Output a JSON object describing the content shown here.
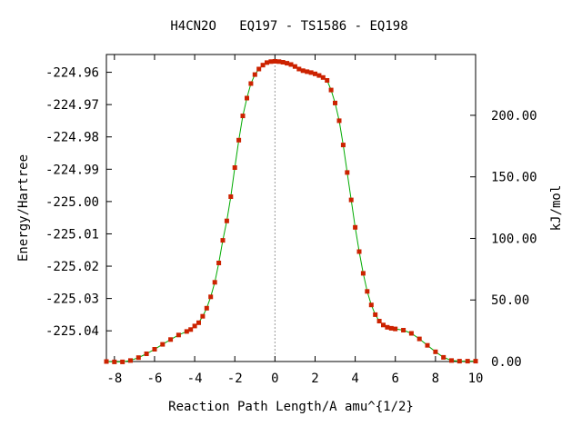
{
  "chart_data": {
    "type": "line",
    "title": "H4CN2O   EQ197 - TS1586 - EQ198",
    "xlabel": "Reaction Path Length/A amu^{1/2}",
    "ylabel": "Energy/Hartree",
    "y2label": "kJ/mol",
    "xlim": [
      -8.4,
      10.0
    ],
    "ylim": [
      -225.0495,
      -224.9545
    ],
    "y2lim": [
      0.0,
      249.4
    ],
    "grid": false,
    "ts_marker_x": 0,
    "x_ticks": [
      -8,
      -6,
      -4,
      -2,
      0,
      2,
      4,
      6,
      8,
      10
    ],
    "x_tick_labels": [
      "-8",
      "-6",
      "-4",
      "-2",
      "0",
      "2",
      "4",
      "6",
      "8",
      "10"
    ],
    "y_ticks": [
      -224.96,
      -224.97,
      -224.98,
      -224.99,
      -225.0,
      -225.01,
      -225.02,
      -225.03,
      -225.04
    ],
    "y_tick_labels": [
      "-224.96",
      "-224.97",
      "-224.98",
      "-224.99",
      "-225.00",
      "-225.01",
      "-225.02",
      "-225.03",
      "-225.04"
    ],
    "y2_ticks": [
      0,
      50,
      100,
      150,
      200
    ],
    "y2_tick_labels": [
      "0.00",
      "50.00",
      "100.00",
      "150.00",
      "200.00"
    ],
    "line_color": "#00aa00",
    "marker_color": "#cc2200",
    "series": [
      {
        "x": [
          -8.4,
          -8.0,
          -7.6,
          -7.2,
          -6.8,
          -6.4,
          -6.0,
          -5.6,
          -5.2,
          -4.8,
          -4.4,
          -4.2,
          -4.0,
          -3.8,
          -3.6,
          -3.4,
          -3.2,
          -3.0,
          -2.8,
          -2.6,
          -2.4,
          -2.2,
          -2.0,
          -1.8,
          -1.6,
          -1.4,
          -1.2,
          -1.0,
          -0.8,
          -0.6,
          -0.4,
          -0.2,
          0.0,
          0.2,
          0.4,
          0.6,
          0.8,
          1.0,
          1.2,
          1.4,
          1.6,
          1.8,
          2.0,
          2.2,
          2.4,
          2.6,
          2.8,
          3.0,
          3.2,
          3.4,
          3.6,
          3.8,
          4.0,
          4.2,
          4.4,
          4.6,
          4.8,
          5.0,
          5.2,
          5.4,
          5.6,
          5.8,
          6.0,
          6.4,
          6.8,
          7.2,
          7.6,
          8.0,
          8.4,
          8.8,
          9.2,
          9.6,
          10.0
        ],
        "y": [
          -225.0495,
          -225.0496,
          -225.0496,
          -225.0492,
          -225.0483,
          -225.0471,
          -225.0457,
          -225.0442,
          -225.0427,
          -225.0413,
          -225.0402,
          -225.0396,
          -225.0385,
          -225.0375,
          -225.0355,
          -225.033,
          -225.0295,
          -225.025,
          -225.019,
          -225.012,
          -225.006,
          -224.9985,
          -224.9895,
          -224.981,
          -224.9735,
          -224.968,
          -224.9635,
          -224.9607,
          -224.959,
          -224.9578,
          -224.957,
          -224.9567,
          -224.9566,
          -224.9567,
          -224.9569,
          -224.9572,
          -224.9576,
          -224.9582,
          -224.959,
          -224.9595,
          -224.9598,
          -224.9601,
          -224.9605,
          -224.961,
          -224.9616,
          -224.9625,
          -224.9655,
          -224.9695,
          -224.975,
          -224.9825,
          -224.991,
          -224.9995,
          -225.008,
          -225.0155,
          -225.0222,
          -225.0278,
          -225.032,
          -225.035,
          -225.037,
          -225.0382,
          -225.0389,
          -225.0392,
          -225.0394,
          -225.0398,
          -225.0408,
          -225.0425,
          -225.0445,
          -225.0465,
          -225.0482,
          -225.0492,
          -225.0494,
          -225.0494,
          -225.0494
        ]
      }
    ]
  }
}
